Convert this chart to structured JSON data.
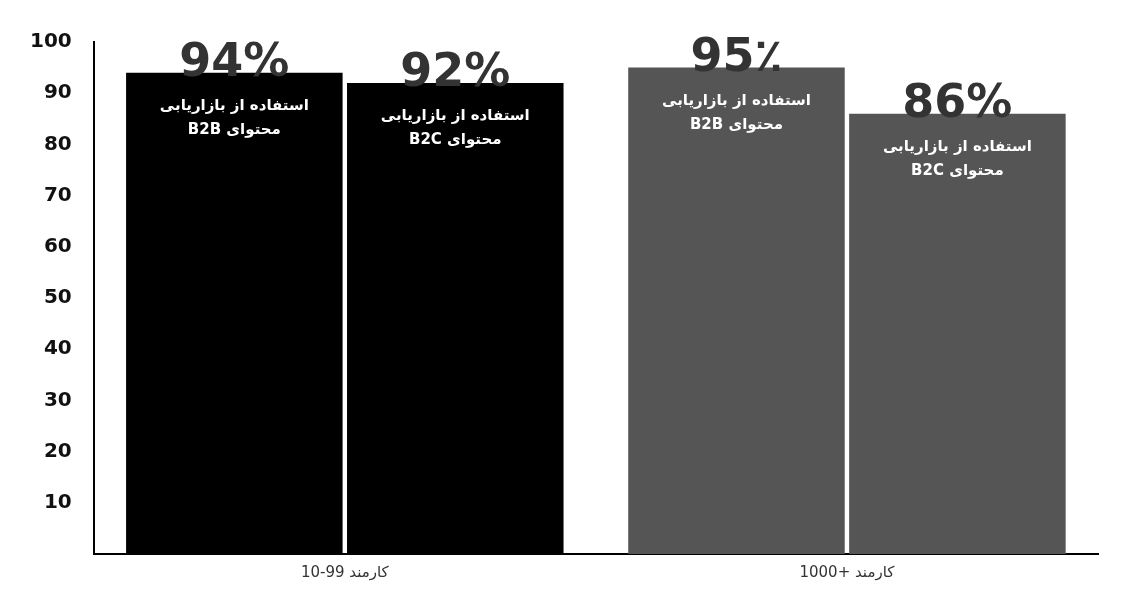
{
  "chart_data": {
    "type": "bar",
    "categories": [
      "10-99 کارمند",
      "1000+ کارمند"
    ],
    "series": [
      {
        "name": "استفاده از بازاریابی محتوای B2B",
        "colors": [
          "#000000",
          "#555555"
        ],
        "values": [
          94,
          95
        ],
        "value_labels": [
          "94%",
          "95٪"
        ]
      },
      {
        "name": "استفاده از بازاریابی محتوای B2C",
        "colors": [
          "#000000",
          "#555555"
        ],
        "values": [
          92,
          86
        ],
        "value_labels": [
          "92%",
          "86%"
        ]
      }
    ],
    "ylim": [
      0,
      100
    ],
    "yticks": [
      10,
      20,
      30,
      40,
      50,
      60,
      70,
      80,
      90,
      100
    ],
    "grid": false,
    "legend": false
  }
}
